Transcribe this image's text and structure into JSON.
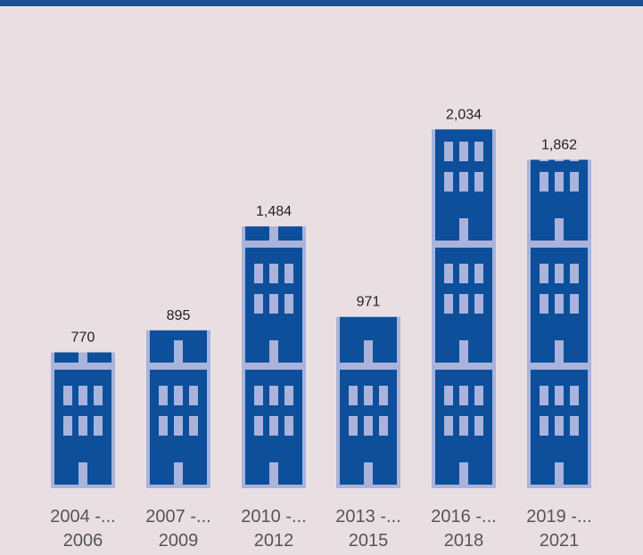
{
  "chart_data": {
    "type": "pictograph",
    "categories": [
      "2004 -... 2006",
      "2007 -... 2009",
      "2010 -... 2012",
      "2013 -... 2015",
      "2016 -... 2018",
      "2019 -... 2021"
    ],
    "values": [
      770,
      895,
      1484,
      971,
      2034,
      1862
    ],
    "value_labels": [
      "770",
      "895",
      "1,484",
      "971",
      "2,034",
      "1,862"
    ],
    "color": "#0d4f9a"
  }
}
